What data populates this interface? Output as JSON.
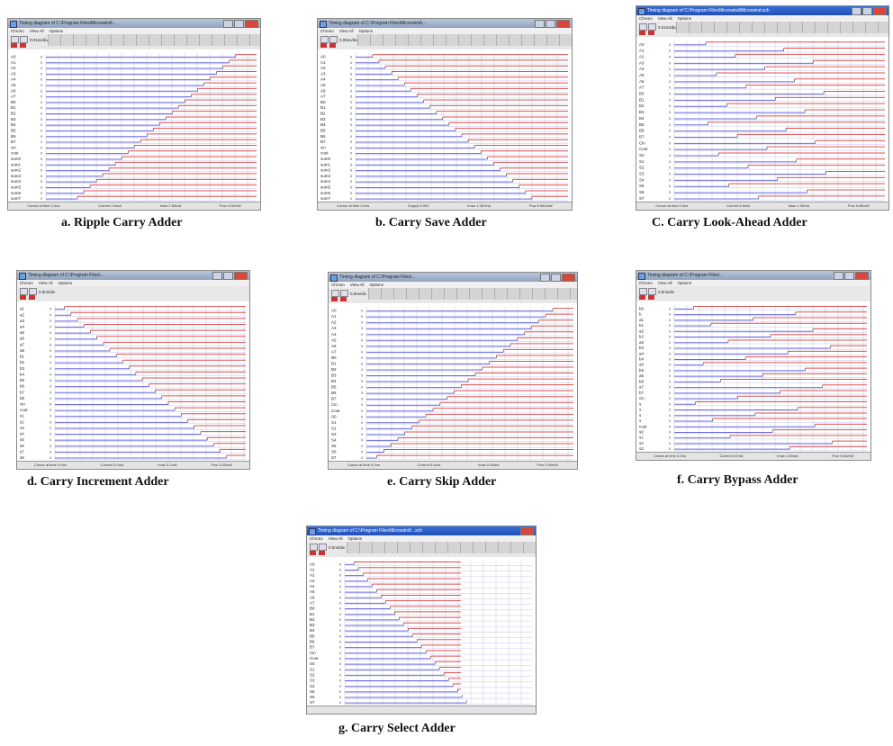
{
  "panels": [
    {
      "id": "a",
      "title": "Timing diagram of C:\\Program Files\\Microwind\\...",
      "menu": [
        "Chrono",
        "View All",
        "Options"
      ],
      "units": "0.01ns/div",
      "status": [
        "Cursor at time 0.0ns",
        "Current 3.0mA",
        "Imax 2.80mA",
        "Pow 0.00mW"
      ],
      "signals": [
        "A0",
        "A1",
        "A2",
        "A3",
        "A4",
        "A5",
        "A6",
        "A7",
        "B0",
        "B1",
        "B2",
        "B3",
        "B4",
        "B5",
        "B6",
        "B7",
        "cin",
        "cout",
        "sum0",
        "sum1",
        "sum2",
        "sum3",
        "sum4",
        "sum5",
        "sum6",
        "sum7"
      ],
      "caption": "a.    Ripple Carry Adder"
    },
    {
      "id": "b",
      "title": "Timing diagram of C:\\Program Files\\Microwind\\...",
      "menu": [
        "Chrono",
        "View All",
        "Options"
      ],
      "units": "0.00ns/div",
      "status": [
        "Cursor at time 0.0ns",
        "Supply 5.00V",
        "Imax 1.387mA",
        "Pow 6.662mW"
      ],
      "signals": [
        "A0",
        "A1",
        "A2",
        "A3",
        "A4",
        "A5",
        "A6",
        "A7",
        "B0",
        "B1",
        "B2",
        "B3",
        "B4",
        "B5",
        "B6",
        "B7",
        "cin",
        "cout",
        "sum0",
        "sum1",
        "sum2",
        "sum3",
        "sum4",
        "sum5",
        "sum6",
        "sum7"
      ],
      "caption": "b. Carry Save Adder"
    },
    {
      "id": "c",
      "title": "Timing diagram of C:\\Program Files\\Microwind\\Microwind.sch",
      "menu": [
        "Chrono",
        "View All",
        "Options"
      ],
      "units": "0.01ns/div",
      "status": [
        "Cursor at time 0.0ns",
        "Current 5.0mA",
        "Imax 1.09mA",
        "Pow 9.48mW"
      ],
      "signals": [
        "A0",
        "A1",
        "A2",
        "A3",
        "A4",
        "A5",
        "A6",
        "A7",
        "B0",
        "B1",
        "B2",
        "B3",
        "B4",
        "B5",
        "B6",
        "B7",
        "Cin",
        "Cout",
        "S0",
        "S1",
        "S2",
        "S3",
        "S4",
        "S5",
        "S6",
        "S7"
      ],
      "caption": "C. Carry Look-Ahead Adder"
    },
    {
      "id": "d",
      "title": "Timing diagram of C:\\Program Files\\...",
      "menu": [
        "Chrono",
        "View All",
        "Options"
      ],
      "units": "0.0ns/div",
      "status": [
        "Cursor at time 0.0ns",
        "Current 3.0mA",
        "Imax 3.2mA",
        "Pow 3.20mW"
      ],
      "signals": [
        "a1",
        "a2",
        "a3",
        "a4",
        "a5",
        "a6",
        "a7",
        "a8",
        "b1",
        "b2",
        "b3",
        "b4",
        "b5",
        "b6",
        "b7",
        "b8",
        "cin",
        "cout",
        "s1",
        "s2",
        "s3",
        "s4",
        "s5",
        "s6",
        "s7",
        "s8"
      ],
      "caption": "d. Carry Increment Adder"
    },
    {
      "id": "e",
      "title": "Timing diagram of C:\\Program Files\\...",
      "menu": [
        "Chrono",
        "View All",
        "Options"
      ],
      "units": "0.0ns/div",
      "status": [
        "Cursor at time 0.0ns",
        "Current 5.0mA",
        "Imax 0.98mA",
        "Pow 0.00mW"
      ],
      "signals": [
        "A0",
        "A1",
        "A2",
        "A3",
        "A4",
        "A5",
        "A6",
        "A7",
        "B0",
        "B1",
        "B2",
        "B3",
        "B4",
        "B5",
        "B6",
        "B7",
        "Cin",
        "Cout",
        "S0",
        "S1",
        "S2",
        "S3",
        "S4",
        "S5",
        "S6",
        "S7"
      ],
      "caption": "e. Carry Skip Adder"
    },
    {
      "id": "f",
      "title": "Timing diagram of C:\\Program Files\\...",
      "menu": [
        "Chrono",
        "View All",
        "Options"
      ],
      "units": "0.0ns/div",
      "status": [
        "Cursor at time 0.0ns",
        "Current 5.0mA",
        "Imax 1.55mA",
        "Pow 5.64mW"
      ],
      "signals": [
        "b0",
        "b",
        "a1",
        "b1",
        "a2",
        "b2",
        "a3",
        "b3",
        "a4",
        "b4",
        "a5",
        "b5",
        "a6",
        "b6",
        "a7",
        "b7",
        "cin",
        "s",
        "s",
        "s",
        "s",
        "cout",
        "s0",
        "s1",
        "s2",
        "s3"
      ],
      "caption": "f. Carry Bypass Adder"
    },
    {
      "id": "g",
      "title": "Timing diagram of C:\\Program Files\\Microwind\\...sch",
      "menu": [
        "Chrono",
        "View All",
        "Options"
      ],
      "units": "0.0ns/div",
      "status": [
        "",
        "",
        "",
        ""
      ],
      "signals": [
        "A0",
        "A1",
        "A2",
        "A3",
        "A4",
        "A5",
        "A6",
        "A7",
        "B0",
        "B1",
        "B2",
        "B3",
        "B4",
        "B5",
        "B6",
        "B7",
        "Cin",
        "Cout",
        "S0",
        "S1",
        "S2",
        "S3",
        "S4",
        "S5",
        "S6",
        "S7"
      ],
      "caption": "g. Carry Select Adder"
    }
  ],
  "colors": {
    "high": "#e05050",
    "low": "#6b6be0",
    "grid": "#c8c8c8"
  }
}
